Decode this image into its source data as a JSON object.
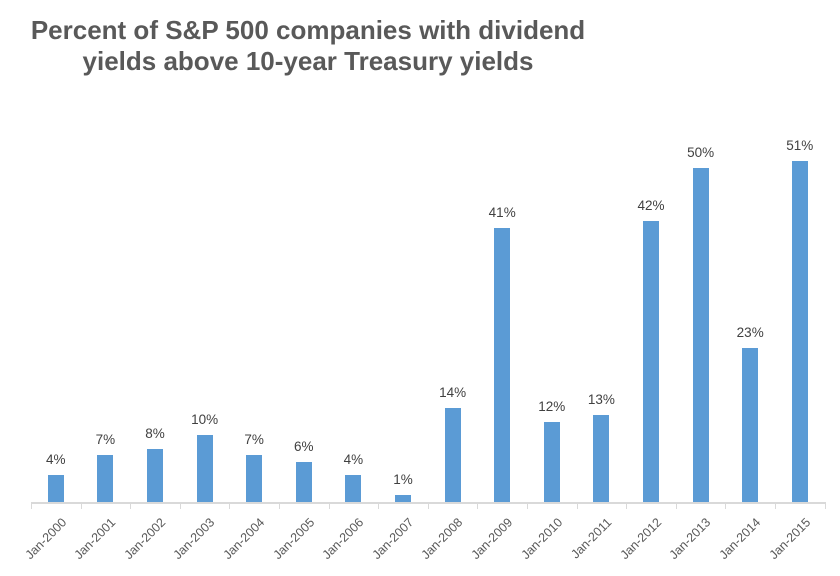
{
  "title_lines": [
    "Percent of S&P 500 companies with dividend",
    "yields above 10-year Treasury yields"
  ],
  "chart_data": {
    "type": "bar",
    "title": "Percent of S&P 500 companies with dividend yields above 10-year Treasury yields",
    "categories": [
      "Jan-2000",
      "Jan-2001",
      "Jan-2002",
      "Jan-2003",
      "Jan-2004",
      "Jan-2005",
      "Jan-2006",
      "Jan-2007",
      "Jan-2008",
      "Jan-2009",
      "Jan-2010",
      "Jan-2011",
      "Jan-2012",
      "Jan-2013",
      "Jan-2014",
      "Jan-2015"
    ],
    "values": [
      4,
      7,
      8,
      10,
      7,
      6,
      4,
      1,
      14,
      41,
      12,
      13,
      42,
      50,
      23,
      51
    ],
    "data_labels": [
      "4%",
      "7%",
      "8%",
      "10%",
      "7%",
      "6%",
      "4%",
      "1%",
      "14%",
      "41%",
      "12%",
      "13%",
      "42%",
      "50%",
      "23%",
      "51%"
    ],
    "xlabel": "",
    "ylabel": "",
    "ylim": [
      0,
      55
    ],
    "grid": false,
    "legend": false,
    "y_axis_visible": false,
    "data_label_position": "outside-end",
    "x_tick_rotation_deg": 45
  },
  "colors": {
    "bar": "#5B9BD5",
    "axis": "#D9D9D9",
    "title_text": "#595959",
    "data_label": "#404040",
    "axis_label": "#595959",
    "background": "#FFFFFF"
  }
}
